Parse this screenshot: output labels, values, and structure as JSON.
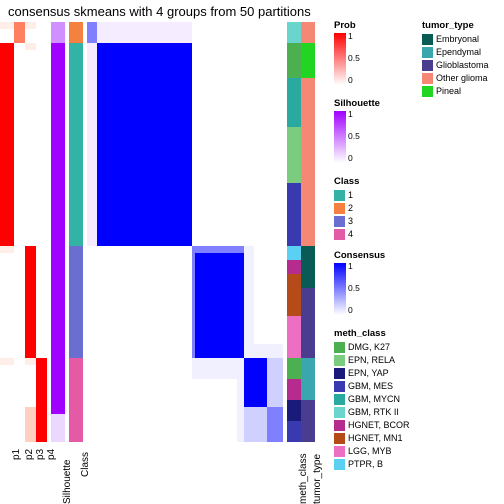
{
  "title": "consensus skmeans with 4 groups from 50 partitions",
  "colors": {
    "white": "#ffffff",
    "red": "#ff0000",
    "red_light": "#ff8060",
    "red_pale": "#ffd0c0",
    "red_vpale": "#ffeee8",
    "purple": "#a000ff",
    "purple_light": "#d090ff",
    "purple_pale": "#ecd8ff",
    "purple_vpale": "#f6ecff",
    "blue": "#0000ff",
    "blue_light": "#8080ff",
    "blue_pale": "#d0d0ff",
    "blue_vpale": "#f0f0ff",
    "class1": "#33b2a6",
    "class2": "#f58141",
    "class3": "#6a6ed1",
    "class4": "#e55aa5",
    "tumor_embryonal": "#0a5a55",
    "tumor_ependymal": "#3aa6ad",
    "tumor_glioblastoma": "#4a3c8e",
    "tumor_otherglioma": "#f58874",
    "tumor_pineal": "#22d522",
    "meth_dmg": "#4caf50",
    "meth_epn_rela": "#7bcc7e",
    "meth_epn_yap": "#1a1a7a",
    "meth_gbm_mes": "#3a3ab0",
    "meth_gbm_mycn": "#2aa9a0",
    "meth_gbm_rtk2": "#6ad5cc",
    "meth_hgnet_bcor": "#b52c8e",
    "meth_hgnet_mn1": "#b54b18",
    "meth_lgg_myb": "#ec6fc4",
    "meth_ptpr_b": "#5ad0f2"
  },
  "tracks": [
    {
      "name": "p1",
      "label": "p1",
      "width": 14
    },
    {
      "name": "p2",
      "label": "p2",
      "width": 11
    },
    {
      "name": "p3",
      "label": "p3",
      "width": 11
    },
    {
      "name": "p4",
      "label": "p4",
      "width": 11
    },
    {
      "name": "gap1",
      "width": 4,
      "gap": true
    },
    {
      "name": "silhouette",
      "label": "Silhouette",
      "width": 14
    },
    {
      "name": "gap2",
      "width": 4,
      "gap": true
    },
    {
      "name": "class",
      "label": "Class",
      "width": 14
    },
    {
      "name": "gap3",
      "width": 4,
      "gap": true
    },
    {
      "name": "heatmap",
      "width": 196
    },
    {
      "name": "gap4",
      "width": 4,
      "gap": true
    },
    {
      "name": "meth_class",
      "label": "meth_class",
      "width": 14
    },
    {
      "name": "tumor_type",
      "label": "tumor_type",
      "width": 14
    }
  ],
  "n_rows": 60,
  "groups": [
    {
      "size": 3,
      "class_color": "class2"
    },
    {
      "size": 29,
      "class_color": "class1"
    },
    {
      "size": 16,
      "class_color": "class3"
    },
    {
      "size": 12,
      "class_color": "class4"
    }
  ],
  "legends": {
    "left_col": [
      {
        "type": "gradient",
        "title": "Prob",
        "stops": [
          "#ffffff",
          "#ff0000"
        ],
        "ticks": [
          "1",
          "0.5",
          "0"
        ]
      },
      {
        "type": "gradient",
        "title": "Silhouette",
        "stops": [
          "#ffffff",
          "#a000ff"
        ],
        "ticks": [
          "1",
          "0.5",
          "0"
        ]
      },
      {
        "type": "swatches",
        "title": "Class",
        "items": [
          {
            "color": "class1",
            "label": "1"
          },
          {
            "color": "class2",
            "label": "2"
          },
          {
            "color": "class3",
            "label": "3"
          },
          {
            "color": "class4",
            "label": "4"
          }
        ]
      },
      {
        "type": "gradient",
        "title": "Consensus",
        "stops": [
          "#ffffff",
          "#0000ff"
        ],
        "ticks": [
          "1",
          "0.5",
          "0"
        ]
      },
      {
        "type": "swatches",
        "title": "meth_class",
        "items": [
          {
            "color": "meth_dmg",
            "label": "DMG, K27"
          },
          {
            "color": "meth_epn_rela",
            "label": "EPN, RELA"
          },
          {
            "color": "meth_epn_yap",
            "label": "EPN, YAP"
          },
          {
            "color": "meth_gbm_mes",
            "label": "GBM, MES"
          },
          {
            "color": "meth_gbm_mycn",
            "label": "GBM, MYCN"
          },
          {
            "color": "meth_gbm_rtk2",
            "label": "GBM, RTK II"
          },
          {
            "color": "meth_hgnet_bcor",
            "label": "HGNET, BCOR"
          },
          {
            "color": "meth_hgnet_mn1",
            "label": "HGNET, MN1"
          },
          {
            "color": "meth_lgg_myb",
            "label": "LGG, MYB"
          },
          {
            "color": "meth_ptpr_b",
            "label": "PTPR, B"
          }
        ]
      }
    ],
    "right_col": [
      {
        "type": "swatches",
        "title": "tumor_type",
        "items": [
          {
            "color": "tumor_embryonal",
            "label": "Embryonal"
          },
          {
            "color": "tumor_ependymal",
            "label": "Ependymal"
          },
          {
            "color": "tumor_glioblastoma",
            "label": "Glioblastoma"
          },
          {
            "color": "tumor_otherglioma",
            "label": "Other glioma"
          },
          {
            "color": "tumor_pineal",
            "label": "Pineal"
          }
        ]
      }
    ]
  }
}
